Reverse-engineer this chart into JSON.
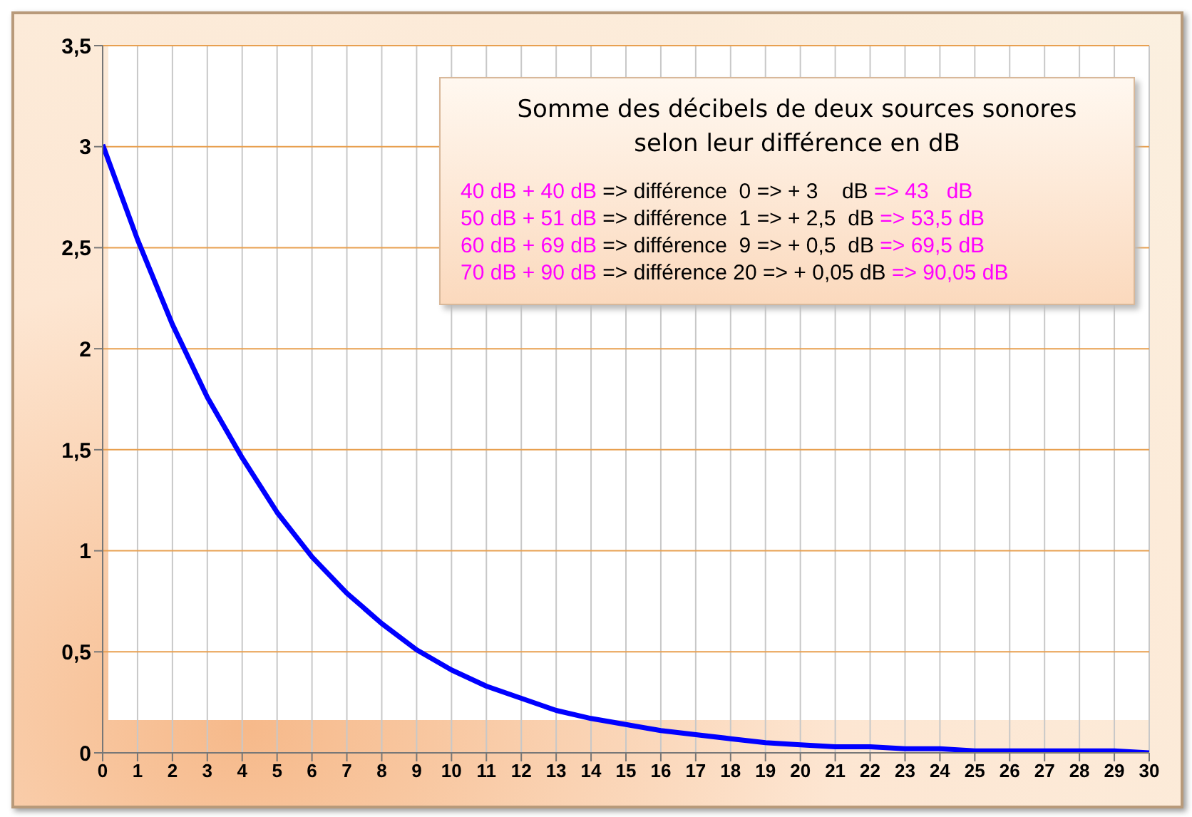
{
  "chart_data": {
    "type": "line",
    "title": "Somme des décibels de deux sources sonores\nselon leur différence en dB",
    "x": [
      0,
      1,
      2,
      3,
      4,
      5,
      6,
      7,
      8,
      9,
      10,
      11,
      12,
      13,
      14,
      15,
      16,
      17,
      18,
      19,
      20,
      21,
      22,
      23,
      24,
      25,
      26,
      27,
      28,
      29,
      30
    ],
    "series": [
      {
        "color": "#0000ff",
        "values": [
          3.01,
          2.54,
          2.12,
          1.76,
          1.46,
          1.19,
          0.97,
          0.79,
          0.64,
          0.51,
          0.41,
          0.33,
          0.27,
          0.21,
          0.17,
          0.14,
          0.11,
          0.09,
          0.07,
          0.05,
          0.04,
          0.03,
          0.03,
          0.02,
          0.02,
          0.01,
          0.01,
          0.01,
          0.01,
          0.01,
          0.0
        ]
      }
    ],
    "xlim": [
      0,
      30
    ],
    "xticks": [
      0,
      1,
      2,
      3,
      4,
      5,
      6,
      7,
      8,
      9,
      10,
      11,
      12,
      13,
      14,
      15,
      16,
      17,
      18,
      19,
      20,
      21,
      22,
      23,
      24,
      25,
      26,
      27,
      28,
      29,
      30
    ],
    "ylim": [
      0,
      3.5
    ],
    "yticks": [
      0,
      {
        "value": 0.5,
        "label": "0,5"
      },
      1,
      {
        "value": 1.5,
        "label": "1,5"
      },
      2,
      {
        "value": 2.5,
        "label": "2,5"
      },
      3,
      {
        "value": 3.5,
        "label": "3,5"
      }
    ],
    "grid": true,
    "marker": "none",
    "line_style": "solid",
    "annotations": [
      "40 dB + 40 dB => différence  0 => + 3    dB => 43   dB",
      "50 dB + 51 dB => différence  1 => + 2,5  dB => 53,5 dB",
      "60 dB + 69 dB => différence  9 => + 0,5  dB => 69,5 dB",
      "70 dB + 90 dB => différence 20 => + 0,05 dB => 90,05 dB"
    ]
  }
}
